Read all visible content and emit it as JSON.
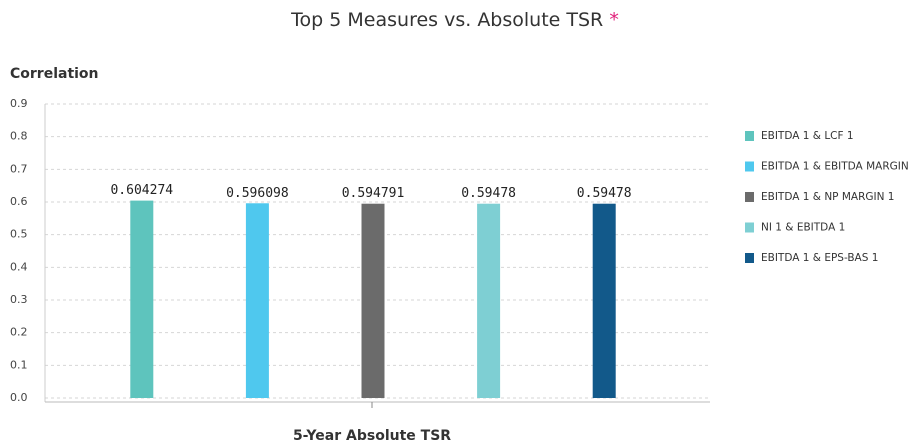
{
  "chart_data": {
    "type": "bar",
    "title": "Top 5 Measures vs. Absolute TSR",
    "title_mark": "*",
    "y_label": "Correlation",
    "x_label": "5-Year Absolute TSR",
    "series": [
      {
        "name": "EBITDA 1 & LCF 1",
        "color": "#5ec4bd",
        "values": [
          0.604274
        ]
      },
      {
        "name": "EBITDA 1 & EBITDA MARGIN",
        "color": "#4fc8ee",
        "values": [
          0.596098
        ]
      },
      {
        "name": "EBITDA 1 & NP MARGIN 1",
        "color": "#6b6b6b",
        "values": [
          0.594791
        ]
      },
      {
        "name": "NI 1 & EBITDA 1",
        "color": "#7ecfd3",
        "values": [
          0.59478
        ]
      },
      {
        "name": "EBITDA 1 & EPS-BAS 1",
        "color": "#12598a",
        "values": [
          0.59478
        ]
      }
    ],
    "ylim": [
      0,
      0.9
    ],
    "yticks": [
      {
        "value": 0,
        "label": "0.0"
      },
      0.1,
      0.2,
      0.3,
      0.4,
      0.5,
      0.6,
      0.7,
      0.8,
      0.9
    ],
    "grid": true,
    "legend": "right"
  }
}
